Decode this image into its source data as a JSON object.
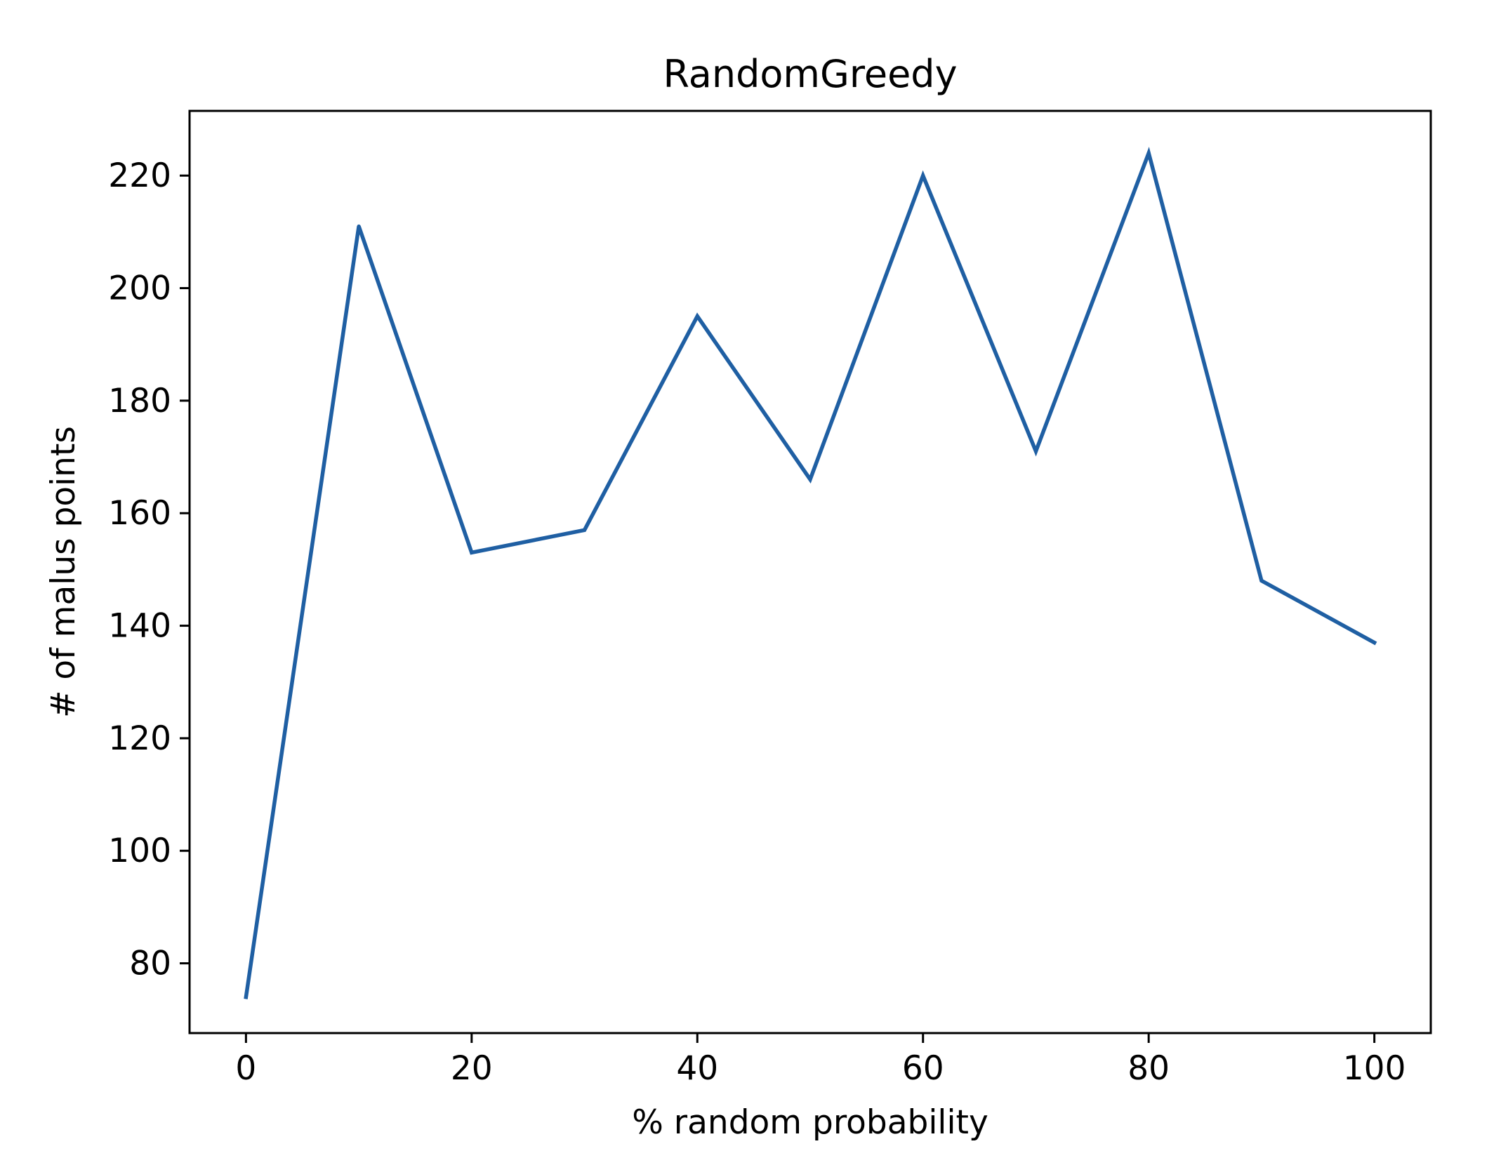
{
  "chart_data": {
    "type": "line",
    "title": "RandomGreedy",
    "xlabel": "% random probability",
    "ylabel": "# of malus points",
    "x": [
      0,
      10,
      20,
      30,
      40,
      50,
      60,
      70,
      80,
      90,
      100
    ],
    "series": [
      {
        "values": [
          74,
          211,
          153,
          157,
          195,
          166,
          220,
          171,
          224,
          148,
          137
        ],
        "color": "#1f5fa3"
      }
    ],
    "xlim": [
      -5,
      105
    ],
    "ylim": [
      67.6,
      231.5
    ],
    "xticks": [
      0,
      20,
      40,
      60,
      80,
      100
    ],
    "yticks": [
      80,
      100,
      120,
      140,
      160,
      180,
      200,
      220
    ],
    "grid": false
  }
}
